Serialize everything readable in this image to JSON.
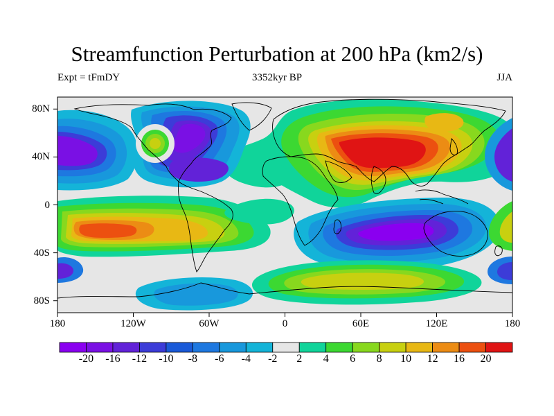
{
  "title": "Streamfunction Perturbation at 200 hPa (km2/s)",
  "subtitle_left": "Expt = tFmDY",
  "subtitle_center": "3352kyr BP",
  "subtitle_right": "JJA",
  "map": {
    "projection": "cylindrical-equidistant",
    "lon_range": [
      -180,
      180
    ],
    "lat_range": [
      -90,
      90
    ],
    "x_ticks": [
      {
        "value": -180,
        "label": "180"
      },
      {
        "value": -120,
        "label": "120W"
      },
      {
        "value": -60,
        "label": "60W"
      },
      {
        "value": 0,
        "label": "0"
      },
      {
        "value": 60,
        "label": "60E"
      },
      {
        "value": 120,
        "label": "120E"
      },
      {
        "value": 180,
        "label": "180"
      }
    ],
    "y_ticks": [
      {
        "value": 80,
        "label": "80N"
      },
      {
        "value": 40,
        "label": "40N"
      },
      {
        "value": 0,
        "label": "0"
      },
      {
        "value": -40,
        "label": "40S"
      },
      {
        "value": -80,
        "label": "80S"
      }
    ],
    "background_color": "#e6e6e6",
    "coastline_color": "#000000"
  },
  "colorbar": {
    "orientation": "horizontal",
    "labels": [
      "-20",
      "-16",
      "-12",
      "-10",
      "-8",
      "-6",
      "-4",
      "-2",
      "2",
      "4",
      "6",
      "8",
      "10",
      "12",
      "16",
      "20"
    ],
    "colors": [
      "#8a00f0",
      "#7a10e4",
      "#6222d8",
      "#3c3cd8",
      "#1a5ad8",
      "#1e78e0",
      "#1898dc",
      "#14b4d8",
      "#e6e6e6",
      "#10d49a",
      "#3cd832",
      "#88d81e",
      "#c8d010",
      "#e8b814",
      "#ec8c14",
      "#ec5010",
      "#e01414"
    ]
  },
  "features": [
    {
      "name": "asian-high",
      "lon": 80,
      "lat": 30,
      "rx": 55,
      "ry": 20,
      "level": 16
    },
    {
      "name": "south-pacific-high",
      "lon": -135,
      "lat": -22,
      "rx": 35,
      "ry": 10,
      "level": 14
    },
    {
      "name": "south-indian-low",
      "lon": 85,
      "lat": -28,
      "rx": 50,
      "ry": 18,
      "level": 0
    },
    {
      "name": "north-pacific-low",
      "lon": -175,
      "lat": 32,
      "rx": 25,
      "ry": 18,
      "level": 1
    },
    {
      "name": "north-america-low",
      "lon": -80,
      "lat": 40,
      "rx": 25,
      "ry": 20,
      "level": 2
    },
    {
      "name": "caribbean-low",
      "lon": -70,
      "lat": 18,
      "rx": 22,
      "ry": 10,
      "level": 3
    },
    {
      "name": "north-pacific-high-small",
      "lon": -112,
      "lat": 45,
      "rx": 8,
      "ry": 8,
      "level": 11
    },
    {
      "name": "antarctic-ridge",
      "lon": 30,
      "lat": -58,
      "rx": 60,
      "ry": 10,
      "level": 10
    },
    {
      "name": "southern-low",
      "lon": -80,
      "lat": -65,
      "rx": 35,
      "ry": 9,
      "level": 6
    }
  ]
}
